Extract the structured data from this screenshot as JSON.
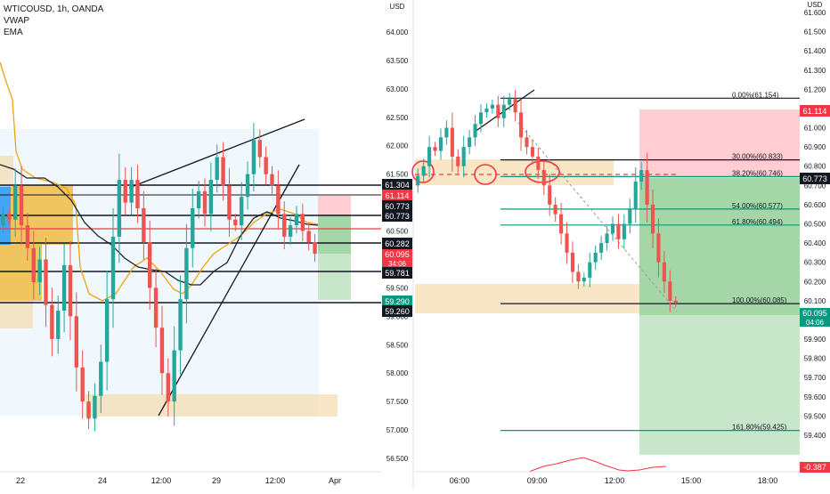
{
  "header": {
    "symbol": "WTICOUSD, 1h, OANDA",
    "indicator_vwap": "VWAP",
    "indicator_ema": "EMA"
  },
  "colors": {
    "up_candle": "#26a69a",
    "down_candle": "#ef5350",
    "label_dark": "#131722",
    "label_red": "#f23645",
    "label_green": "#089981",
    "zone_orange": "#f5deb3",
    "zone_red": "#ffcdd2",
    "zone_green": "#a5d6a7",
    "fib_green": "#089981",
    "vwap_line": "#1e222d",
    "ema_line": "#f0a30a"
  },
  "chart_data": [
    {
      "type": "line",
      "title": "WTICOUSD, 1h, OANDA",
      "x_tick_labels": [
        "22",
        "24",
        "12:00",
        "29",
        "12:00",
        "Apr"
      ],
      "y_tick_labels": [
        "64.000",
        "63.500",
        "63.000",
        "62.500",
        "62.000",
        "61.500",
        "61.000",
        "60.500",
        "60.000",
        "59.500",
        "59.000",
        "58.500",
        "58.000",
        "57.500",
        "57.000",
        "56.500"
      ],
      "ylim": [
        56.4,
        64.3
      ],
      "y_unit": "USD",
      "series": [
        {
          "values": [
            60.8,
            60.7,
            61.3,
            60.6,
            60.2,
            59.6,
            60.0,
            59.2,
            58.6,
            59.1,
            59.9,
            59.0,
            58.1,
            57.5,
            57.2,
            57.6,
            58.2,
            59.3,
            60.4,
            61.4,
            61.0,
            61.4,
            60.9,
            60.3,
            59.5,
            58.8,
            58.0,
            57.5,
            58.4,
            59.3,
            60.2,
            60.9,
            61.2,
            60.8,
            61.4,
            61.8,
            61.3,
            60.7,
            60.6,
            61.1,
            61.5,
            62.1,
            61.8,
            61.5,
            61.3,
            60.8,
            60.4,
            60.6,
            60.8,
            60.5,
            60.3,
            60.1
          ]
        }
      ],
      "price_labels": [
        "61.304",
        "61.114",
        "60.773",
        "60.773",
        "60.282",
        "60.095",
        "34:06",
        "59.781",
        "59.290",
        "59.260"
      ],
      "grid": false
    },
    {
      "type": "line",
      "x_tick_labels": [
        "06:00",
        "09:00",
        "12:00",
        "15:00",
        "18:00"
      ],
      "y_tick_labels": [
        "61.600",
        "61.500",
        "61.400",
        "61.300",
        "61.200",
        "61.100",
        "61.000",
        "60.900",
        "60.800",
        "60.700",
        "60.600",
        "60.500",
        "60.400",
        "60.300",
        "60.200",
        "60.100",
        "60.000",
        "59.900",
        "59.800",
        "59.700",
        "59.600",
        "59.500",
        "59.400"
      ],
      "ylim": [
        59.35,
        61.68
      ],
      "y_unit": "USD",
      "series": [
        {
          "values": [
            60.75,
            60.8,
            60.9,
            60.88,
            60.95,
            61.0,
            60.85,
            60.8,
            60.9,
            60.95,
            61.02,
            61.08,
            61.1,
            61.12,
            61.05,
            61.12,
            61.15,
            61.08,
            60.95,
            60.9,
            60.85,
            60.78,
            60.7,
            60.6,
            60.55,
            60.45,
            60.35,
            60.25,
            60.2,
            60.22,
            60.3,
            60.35,
            60.4,
            60.45,
            60.5,
            60.42,
            60.5,
            60.58,
            60.72,
            60.78,
            60.6,
            60.45,
            60.3,
            60.2,
            60.1,
            60.09
          ]
        }
      ],
      "fib_levels": [
        {
          "label": "0.00%(61.154)",
          "value": 61.154
        },
        {
          "label": "30.00%(60.833)",
          "value": 60.833
        },
        {
          "label": "38.20%(60.746)",
          "value": 60.746
        },
        {
          "label": "54.00%(60.577)",
          "value": 60.577
        },
        {
          "label": "61.80%(60.494)",
          "value": 60.494
        },
        {
          "label": "100.00%(60.085)",
          "value": 60.085
        },
        {
          "label": "161.80%(59.425)",
          "value": 59.425
        }
      ],
      "price_labels": [
        "61.114",
        "60.773",
        "60.095",
        "04:06",
        "-0.387"
      ],
      "grid": false
    }
  ]
}
